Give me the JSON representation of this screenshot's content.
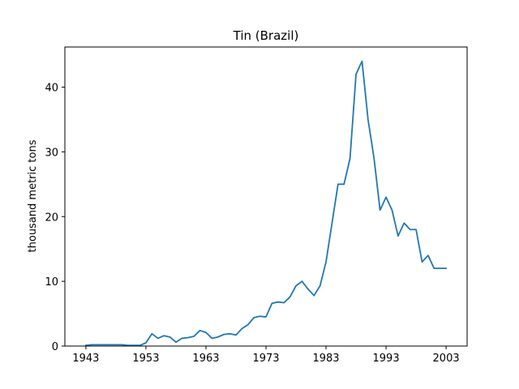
{
  "chart_data": {
    "type": "line",
    "title": "Tin (Brazil)",
    "xlabel": "",
    "ylabel": "thousand metric tons",
    "xlim": [
      1939.5,
      2006.5
    ],
    "ylim": [
      0,
      46.2
    ],
    "x_ticks": [
      1943,
      1953,
      1963,
      1973,
      1983,
      1993,
      2003
    ],
    "y_ticks": [
      0,
      10,
      20,
      30,
      40
    ],
    "grid": false,
    "legend": "none",
    "series": [
      {
        "color": "#1f77b4",
        "x": [
          1943,
          1944,
          1945,
          1946,
          1947,
          1948,
          1949,
          1950,
          1951,
          1952,
          1953,
          1954,
          1955,
          1956,
          1957,
          1958,
          1959,
          1960,
          1961,
          1962,
          1963,
          1964,
          1965,
          1966,
          1967,
          1968,
          1969,
          1970,
          1971,
          1972,
          1973,
          1974,
          1975,
          1976,
          1977,
          1978,
          1979,
          1980,
          1981,
          1982,
          1983,
          1984,
          1985,
          1986,
          1987,
          1988,
          1989,
          1990,
          1991,
          1992,
          1993,
          1994,
          1995,
          1996,
          1997,
          1998,
          1999,
          2000,
          2001,
          2002,
          2003
        ],
        "values": [
          0.1,
          0.2,
          0.2,
          0.2,
          0.2,
          0.2,
          0.2,
          0.1,
          0.1,
          0.1,
          0.5,
          1.9,
          1.2,
          1.6,
          1.4,
          0.6,
          1.2,
          1.3,
          1.5,
          2.4,
          2.1,
          1.2,
          1.4,
          1.8,
          1.9,
          1.7,
          2.7,
          3.3,
          4.4,
          4.6,
          4.5,
          6.6,
          6.8,
          6.7,
          7.6,
          9.3,
          10.0,
          8.8,
          7.8,
          9.3,
          13.0,
          19.0,
          25.0,
          25.0,
          29.0,
          42.0,
          44.0,
          35.0,
          29.0,
          21.0,
          23.0,
          21.0,
          17.0,
          19.0,
          18.0,
          18.0,
          13.0,
          14.0,
          12.0,
          12.0,
          12.0
        ]
      }
    ]
  }
}
